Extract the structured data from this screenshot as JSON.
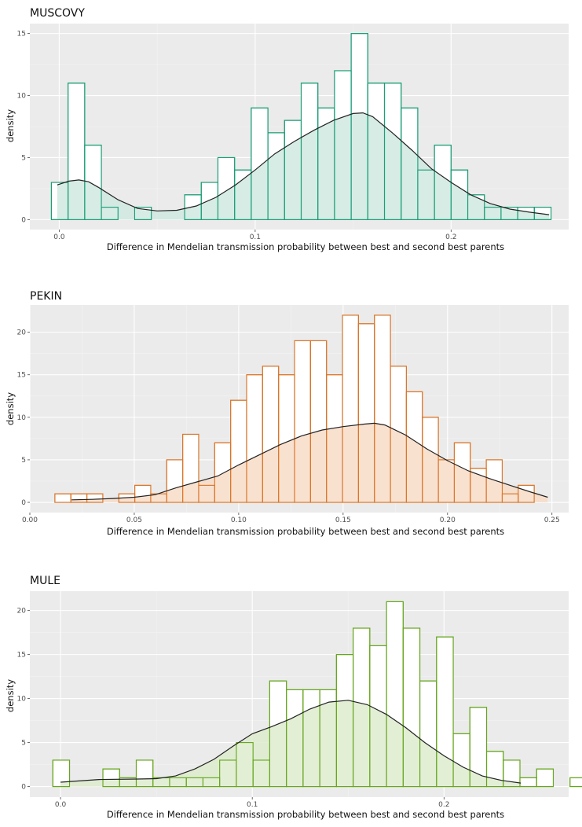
{
  "chart_data": [
    {
      "type": "bar",
      "title": "MUSCOVY",
      "xlabel": "Difference in Mendelian transmission probability between best and second best parents",
      "ylabel": "density",
      "xlim": [
        -0.015,
        0.26
      ],
      "ylim": [
        -0.8,
        15.8
      ],
      "xticks": [
        0.0,
        0.1,
        0.2
      ],
      "xtick_labels": [
        "0.0",
        "0.1",
        "0.2"
      ],
      "yticks": [
        0,
        5,
        10,
        15
      ],
      "ytick_labels": [
        "0",
        "5",
        "10",
        "15"
      ],
      "grid": true,
      "bin_start": -0.004,
      "bin_width": 0.0085,
      "values": [
        3,
        11,
        6,
        1,
        0,
        1,
        0,
        0,
        2,
        3,
        5,
        4,
        9,
        7,
        8,
        11,
        9,
        12,
        15,
        11,
        11,
        9,
        4,
        6,
        4,
        2,
        1,
        1,
        1,
        1
      ],
      "density_curve": {
        "x": [
          -0.001,
          0.005,
          0.01,
          0.015,
          0.02,
          0.03,
          0.04,
          0.05,
          0.06,
          0.07,
          0.08,
          0.09,
          0.1,
          0.11,
          0.12,
          0.13,
          0.14,
          0.15,
          0.155,
          0.16,
          0.17,
          0.18,
          0.19,
          0.2,
          0.21,
          0.22,
          0.23,
          0.24,
          0.25
        ],
        "y": [
          2.8,
          3.1,
          3.2,
          3.05,
          2.6,
          1.6,
          0.9,
          0.7,
          0.75,
          1.1,
          1.8,
          2.8,
          4.0,
          5.3,
          6.3,
          7.2,
          8.0,
          8.55,
          8.6,
          8.3,
          7.0,
          5.6,
          4.1,
          3.0,
          2.0,
          1.3,
          0.85,
          0.6,
          0.4
        ]
      },
      "colors": {
        "stroke": "#1b9e77",
        "fill": "#cfe9e1"
      }
    },
    {
      "type": "bar",
      "title": "PEKIN",
      "xlabel": "Difference in Mendelian transmission probability between best and second best parents",
      "ylabel": "density",
      "xlim": [
        0.0,
        0.258
      ],
      "ylim": [
        -1.2,
        23.2
      ],
      "xticks": [
        0.0,
        0.05,
        0.1,
        0.15,
        0.2,
        0.25
      ],
      "xtick_labels": [
        "0.00",
        "0.05",
        "0.10",
        "0.15",
        "0.20",
        "0.25"
      ],
      "yticks": [
        0,
        5,
        10,
        15,
        20
      ],
      "ytick_labels": [
        "0",
        "5",
        "10",
        "15",
        "20"
      ],
      "grid": true,
      "bin_start": 0.012,
      "bin_width": 0.00765,
      "values": [
        1,
        1,
        1,
        0,
        1,
        2,
        1,
        5,
        8,
        2,
        7,
        12,
        15,
        16,
        15,
        19,
        19,
        15,
        22,
        21,
        22,
        16,
        13,
        10,
        5,
        7,
        4,
        5,
        1,
        2
      ],
      "density_curve": {
        "x": [
          0.02,
          0.03,
          0.04,
          0.05,
          0.06,
          0.07,
          0.08,
          0.09,
          0.1,
          0.11,
          0.12,
          0.13,
          0.14,
          0.15,
          0.16,
          0.165,
          0.17,
          0.18,
          0.19,
          0.2,
          0.21,
          0.22,
          0.23,
          0.24,
          0.248
        ],
        "y": [
          0.3,
          0.35,
          0.45,
          0.6,
          0.9,
          1.7,
          2.4,
          3.1,
          4.4,
          5.6,
          6.8,
          7.8,
          8.5,
          8.9,
          9.2,
          9.3,
          9.1,
          7.9,
          6.3,
          4.9,
          3.7,
          2.8,
          2.0,
          1.2,
          0.6
        ]
      },
      "colors": {
        "stroke": "#d9762a",
        "fill": "#f8dcc7"
      }
    },
    {
      "type": "bar",
      "title": "MULE",
      "xlabel": "Difference in Mendelian transmission probability between best and second best parents",
      "ylabel": "density",
      "xlim": [
        -0.016,
        0.265
      ],
      "ylim": [
        -1.2,
        22.2
      ],
      "xticks": [
        0.0,
        0.1,
        0.2
      ],
      "xtick_labels": [
        "0.0",
        "0.1",
        "0.2"
      ],
      "yticks": [
        0,
        5,
        10,
        15,
        20
      ],
      "ytick_labels": [
        "0",
        "5",
        "10",
        "15",
        "20"
      ],
      "grid": true,
      "bin_start": -0.004,
      "bin_width": 0.0087,
      "values": [
        3,
        0,
        0,
        2,
        1,
        3,
        1,
        1,
        1,
        1,
        3,
        5,
        3,
        12,
        11,
        11,
        11,
        15,
        18,
        16,
        21,
        18,
        12,
        17,
        6,
        9,
        4,
        3,
        1,
        2,
        0,
        1
      ],
      "density_curve": {
        "x": [
          0.0,
          0.02,
          0.04,
          0.05,
          0.06,
          0.07,
          0.08,
          0.09,
          0.1,
          0.11,
          0.12,
          0.13,
          0.14,
          0.15,
          0.16,
          0.17,
          0.18,
          0.19,
          0.2,
          0.21,
          0.22,
          0.23,
          0.24
        ],
        "y": [
          0.5,
          0.8,
          0.85,
          0.9,
          1.2,
          2.0,
          3.1,
          4.6,
          6.0,
          6.8,
          7.7,
          8.8,
          9.6,
          9.8,
          9.3,
          8.2,
          6.7,
          5.0,
          3.5,
          2.2,
          1.2,
          0.7,
          0.4
        ]
      },
      "colors": {
        "stroke": "#66a61e",
        "fill": "#ddecce"
      }
    }
  ],
  "colors": {
    "panel_bg": "#ebebeb",
    "grid_major": "#ffffff",
    "grid_minor": "#f4f4f4",
    "density_line": "#222222",
    "bar_face": "#ffffff"
  }
}
